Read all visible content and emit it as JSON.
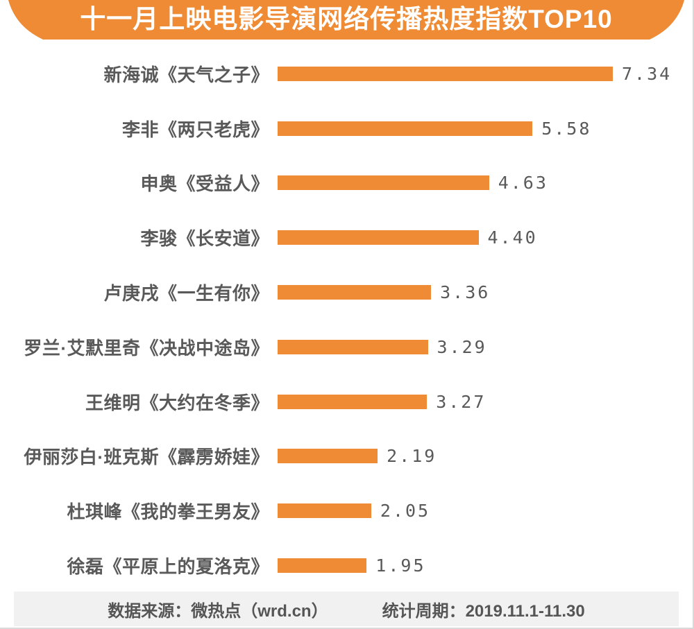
{
  "page": {
    "title": "十一月上映电影导演网络传播热度指数TOP10",
    "footer": {
      "source_label": "数据来源：微热点（wrd.cn）",
      "period_label": "统计周期：2019.11.1-11.30"
    }
  },
  "colors": {
    "accent_orange": "#EE8B34",
    "title_text": "#FFFFFF",
    "label_text": "#595959",
    "footer_bg": "#F1F1F1",
    "footer_text": "#555555",
    "page_border": "#D9D9D9"
  },
  "chart_data": {
    "type": "bar",
    "orientation": "horizontal",
    "title": "十一月上映电影导演网络传播热度指数TOP10",
    "categories": [
      "新海诚《天气之子》",
      "李非《两只老虎》",
      "申奥《受益人》",
      "李骏《长安道》",
      "卢庚戌《一生有你》",
      "罗兰·艾默里奇《决战中途岛》",
      "王维明《大约在冬季》",
      "伊丽莎白·班克斯《霹雳娇娃》",
      "杜琪峰《我的拳王男友》",
      "徐磊《平原上的夏洛克》"
    ],
    "values": [
      7.34,
      5.58,
      4.63,
      4.4,
      3.36,
      3.29,
      3.27,
      2.19,
      2.05,
      1.95
    ],
    "value_labels": [
      "7.34",
      "5.58",
      "4.63",
      "4.40",
      "3.36",
      "3.29",
      "3.27",
      "2.19",
      "2.05",
      "1.95"
    ],
    "xlabel": "",
    "ylabel": "",
    "xlim": [
      0,
      8
    ],
    "grid": false,
    "legend": null,
    "bar_color": "#EE8B34",
    "data_source": "数据来源：微热点（wrd.cn）",
    "stat_period": "统计周期：2019.11.1-11.30"
  }
}
